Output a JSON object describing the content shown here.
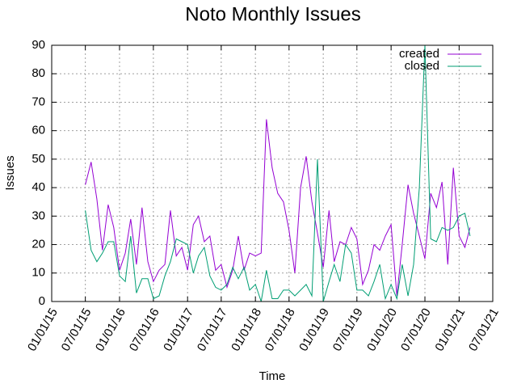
{
  "chart_data": {
    "type": "line",
    "title": "Noto Monthly Issues",
    "x_label": "Time",
    "y_label": "Issues",
    "x": [
      "2015-07-01",
      "2015-08-01",
      "2015-09-01",
      "2015-10-01",
      "2015-11-01",
      "2015-12-01",
      "2016-01-01",
      "2016-02-01",
      "2016-03-01",
      "2016-04-01",
      "2016-05-01",
      "2016-06-01",
      "2016-07-01",
      "2016-08-01",
      "2016-09-01",
      "2016-10-01",
      "2016-11-01",
      "2016-12-01",
      "2017-01-01",
      "2017-02-01",
      "2017-03-01",
      "2017-04-01",
      "2017-05-01",
      "2017-06-01",
      "2017-07-01",
      "2017-08-01",
      "2017-09-01",
      "2017-10-01",
      "2017-11-01",
      "2017-12-01",
      "2018-01-01",
      "2018-02-01",
      "2018-03-01",
      "2018-04-01",
      "2018-05-01",
      "2018-06-01",
      "2018-07-01",
      "2018-08-01",
      "2018-09-01",
      "2018-10-01",
      "2018-11-01",
      "2018-12-01",
      "2019-01-01",
      "2019-02-01",
      "2019-03-01",
      "2019-04-01",
      "2019-05-01",
      "2019-06-01",
      "2019-07-01",
      "2019-08-01",
      "2019-09-01",
      "2019-10-01",
      "2019-11-01",
      "2019-12-01",
      "2020-01-01",
      "2020-02-01",
      "2020-03-01",
      "2020-04-01",
      "2020-05-01",
      "2020-06-01",
      "2020-07-01",
      "2020-08-01",
      "2020-09-01",
      "2020-10-01",
      "2020-11-01",
      "2020-12-01",
      "2021-01-01",
      "2021-02-01",
      "2021-03-01"
    ],
    "series": [
      {
        "name": "created",
        "color": "#9400d3",
        "values": [
          41,
          49,
          36,
          18,
          34,
          26,
          11,
          17,
          29,
          13,
          33,
          14,
          7,
          11,
          13,
          32,
          16,
          19,
          11,
          27,
          30,
          21,
          23,
          11,
          13,
          5,
          11,
          23,
          11,
          17,
          16,
          17,
          64,
          47,
          38,
          35,
          25,
          10,
          40,
          51,
          35,
          24,
          12,
          32,
          14,
          21,
          20,
          26,
          22,
          6,
          11,
          20,
          18,
          23,
          27,
          2,
          20,
          41,
          31,
          23,
          15,
          38,
          33,
          42,
          13,
          47,
          23,
          19,
          26
        ]
      },
      {
        "name": "closed",
        "color": "#009e73",
        "values": [
          32,
          18,
          14,
          17,
          21,
          21,
          9,
          7,
          23,
          3,
          8,
          8,
          1,
          2,
          9,
          14,
          22,
          21,
          20,
          10,
          16,
          19,
          9,
          5,
          4,
          6,
          12,
          8,
          12,
          4,
          6,
          0,
          11,
          1,
          1,
          4,
          4,
          2,
          4,
          6,
          2,
          50,
          0,
          7,
          13,
          7,
          20,
          17,
          4,
          4,
          2,
          7,
          13,
          1,
          6,
          1,
          13,
          2,
          13,
          40,
          90,
          22,
          21,
          26,
          25,
          26,
          30,
          31,
          23
        ]
      }
    ],
    "xlim": [
      "2015-01-01",
      "2021-07-01"
    ],
    "xticks": [
      {
        "value": "2015-01-01",
        "label": "01/01/15"
      },
      {
        "value": "2015-07-01",
        "label": "07/01/15"
      },
      {
        "value": "2016-01-01",
        "label": "01/01/16"
      },
      {
        "value": "2016-07-01",
        "label": "07/01/16"
      },
      {
        "value": "2017-01-01",
        "label": "01/01/17"
      },
      {
        "value": "2017-07-01",
        "label": "07/01/17"
      },
      {
        "value": "2018-01-01",
        "label": "01/01/18"
      },
      {
        "value": "2018-07-01",
        "label": "07/01/18"
      },
      {
        "value": "2019-01-01",
        "label": "01/01/19"
      },
      {
        "value": "2019-07-01",
        "label": "07/01/19"
      },
      {
        "value": "2020-01-01",
        "label": "01/01/20"
      },
      {
        "value": "2020-07-01",
        "label": "07/01/20"
      },
      {
        "value": "2021-01-01",
        "label": "01/01/21"
      },
      {
        "value": "2021-07-01",
        "label": "07/01/21"
      }
    ],
    "ylim": [
      0,
      90
    ],
    "yticks": [
      0,
      10,
      20,
      30,
      40,
      50,
      60,
      70,
      80,
      90
    ],
    "grid": true,
    "legend": "top-right"
  }
}
